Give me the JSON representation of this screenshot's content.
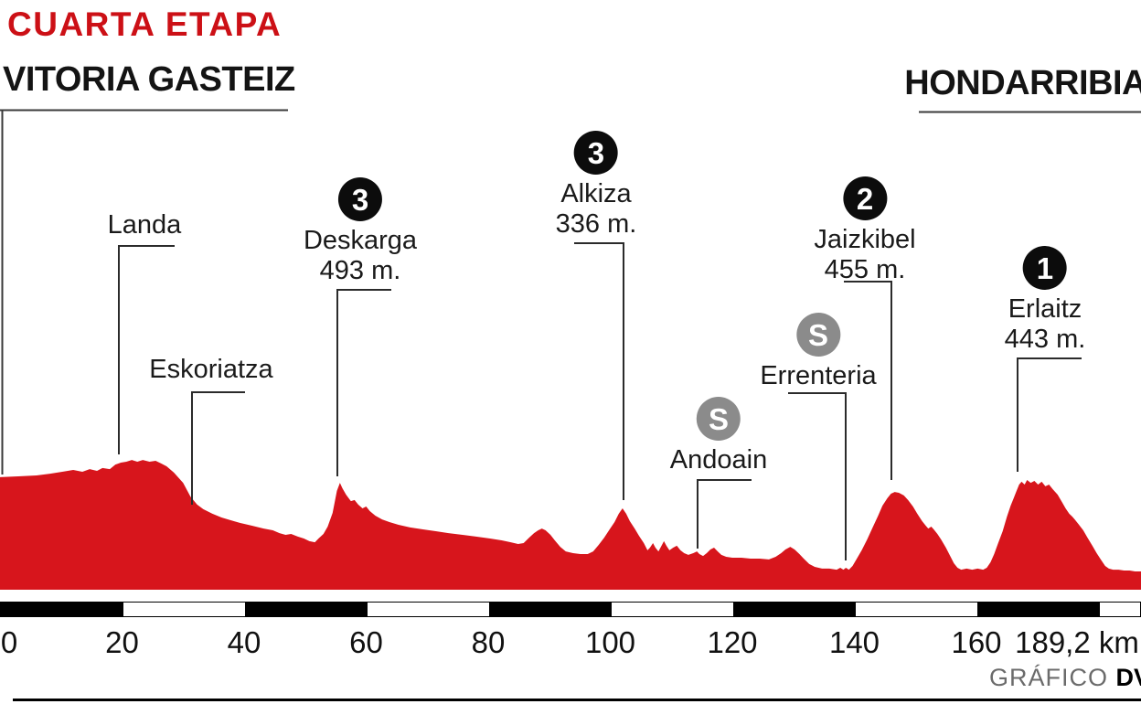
{
  "header": {
    "stage_title": "CUARTA ETAPA",
    "start": "VITORIA GASTEIZ",
    "finish": "HONDARRIBIA"
  },
  "credit": {
    "prefix": "GRÁFICO",
    "brand": "DV"
  },
  "colors": {
    "title_red": "#cc1016",
    "profile_red": "#d7151c",
    "badge_black": "#0c0c0c",
    "sprint_gray": "#8b8b8b",
    "leader_line": "#2b2b2b"
  },
  "chart_data": {
    "type": "area",
    "title": "CUARTA ETAPA",
    "start_label": "VITORIA GASTEIZ",
    "finish_label": "HONDARRIBIA",
    "unit": "km",
    "x_ticks": [
      0,
      20,
      40,
      60,
      80,
      100,
      120,
      140,
      160
    ],
    "total_distance_label": "189,2 km",
    "total_distance_km": 189.2,
    "xlim": [
      0,
      189.2
    ],
    "grid": false,
    "markers": [
      {
        "name": "Landa",
        "type": "town",
        "km": 19.5
      },
      {
        "name": "Eskoriatza",
        "type": "town",
        "km": 31.5
      },
      {
        "name": "Deskarga",
        "type": "climb",
        "km": 55.3,
        "badge": "3",
        "height_label": "493 m."
      },
      {
        "name": "Alkiza",
        "type": "climb",
        "km": 102.2,
        "badge": "3",
        "height_label": "336 m."
      },
      {
        "name": "Andoain",
        "type": "sprint",
        "km": 114.3,
        "badge": "S"
      },
      {
        "name": "Errenteria",
        "type": "sprint",
        "km": 138.6,
        "badge": "S"
      },
      {
        "name": "Jaizkibel",
        "type": "climb",
        "km": 146.1,
        "badge": "2",
        "height_label": "455 m."
      },
      {
        "name": "Erlaitz",
        "type": "climb",
        "km": 166.7,
        "badge": "1",
        "height_label": "443 m."
      }
    ],
    "profile": [
      [
        0,
        517
      ],
      [
        3,
        521
      ],
      [
        6,
        525
      ],
      [
        8.2,
        533
      ],
      [
        10.2,
        542
      ],
      [
        12,
        550
      ],
      [
        13.5,
        542
      ],
      [
        14.7,
        554
      ],
      [
        15.9,
        546
      ],
      [
        16.8,
        559
      ],
      [
        18,
        554
      ],
      [
        18.9,
        575
      ],
      [
        19.8,
        584
      ],
      [
        20.7,
        588
      ],
      [
        21.6,
        596
      ],
      [
        22.5,
        588
      ],
      [
        23.4,
        596
      ],
      [
        24.5,
        588
      ],
      [
        25.5,
        592
      ],
      [
        26.4,
        580
      ],
      [
        27.3,
        567
      ],
      [
        28.5,
        538
      ],
      [
        30,
        491
      ],
      [
        31.2,
        428
      ],
      [
        32.3,
        391
      ],
      [
        33.3,
        370
      ],
      [
        34.8,
        349
      ],
      [
        36.3,
        332
      ],
      [
        37.8,
        319
      ],
      [
        39.3,
        307
      ],
      [
        41.3,
        294
      ],
      [
        43.2,
        281
      ],
      [
        44.7,
        273
      ],
      [
        45.8,
        260
      ],
      [
        46.8,
        252
      ],
      [
        47.7,
        256
      ],
      [
        48.8,
        244
      ],
      [
        49.8,
        235
      ],
      [
        50.7,
        223
      ],
      [
        51.6,
        218
      ],
      [
        52.2,
        235
      ],
      [
        53,
        256
      ],
      [
        53.7,
        290
      ],
      [
        54.5,
        353
      ],
      [
        55.2,
        454
      ],
      [
        55.7,
        491
      ],
      [
        56.1,
        466
      ],
      [
        56.7,
        437
      ],
      [
        57.5,
        407
      ],
      [
        58.1,
        412
      ],
      [
        58.7,
        391
      ],
      [
        59.4,
        374
      ],
      [
        60,
        382
      ],
      [
        60.6,
        361
      ],
      [
        61.5,
        340
      ],
      [
        62.6,
        323
      ],
      [
        63.8,
        311
      ],
      [
        65.3,
        298
      ],
      [
        67.2,
        286
      ],
      [
        69.3,
        277
      ],
      [
        71.4,
        269
      ],
      [
        73.5,
        260
      ],
      [
        75.8,
        252
      ],
      [
        78,
        244
      ],
      [
        80.3,
        235
      ],
      [
        82.2,
        227
      ],
      [
        83.7,
        218
      ],
      [
        84.9,
        210
      ],
      [
        85.8,
        214
      ],
      [
        86.7,
        239
      ],
      [
        87.5,
        260
      ],
      [
        88.2,
        273
      ],
      [
        88.8,
        281
      ],
      [
        89.4,
        273
      ],
      [
        90.2,
        252
      ],
      [
        90.9,
        227
      ],
      [
        91.8,
        197
      ],
      [
        92.7,
        176
      ],
      [
        93.9,
        168
      ],
      [
        95.1,
        164
      ],
      [
        96.3,
        164
      ],
      [
        97.2,
        176
      ],
      [
        98.1,
        206
      ],
      [
        99,
        239
      ],
      [
        99.9,
        277
      ],
      [
        100.7,
        311
      ],
      [
        101.4,
        349
      ],
      [
        102,
        374
      ],
      [
        102.6,
        349
      ],
      [
        103.2,
        315
      ],
      [
        104,
        281
      ],
      [
        104.7,
        248
      ],
      [
        105.5,
        214
      ],
      [
        106.1,
        181
      ],
      [
        106.5,
        193
      ],
      [
        107,
        214
      ],
      [
        107.4,
        193
      ],
      [
        107.9,
        176
      ],
      [
        108.3,
        197
      ],
      [
        108.8,
        223
      ],
      [
        109.2,
        202
      ],
      [
        109.7,
        181
      ],
      [
        110.3,
        193
      ],
      [
        110.9,
        202
      ],
      [
        111.5,
        181
      ],
      [
        112.1,
        168
      ],
      [
        112.8,
        160
      ],
      [
        113.6,
        168
      ],
      [
        114.2,
        176
      ],
      [
        114.6,
        164
      ],
      [
        115.2,
        155
      ],
      [
        115.8,
        168
      ],
      [
        116.4,
        185
      ],
      [
        117,
        193
      ],
      [
        117.6,
        176
      ],
      [
        118.2,
        160
      ],
      [
        119,
        151
      ],
      [
        120,
        147
      ],
      [
        121.5,
        147
      ],
      [
        123,
        143
      ],
      [
        124.5,
        143
      ],
      [
        126,
        139
      ],
      [
        127.1,
        151
      ],
      [
        128,
        168
      ],
      [
        128.7,
        185
      ],
      [
        129.5,
        197
      ],
      [
        130.2,
        185
      ],
      [
        131,
        164
      ],
      [
        131.7,
        143
      ],
      [
        132.6,
        118
      ],
      [
        133.5,
        105
      ],
      [
        134.7,
        97
      ],
      [
        135.9,
        97
      ],
      [
        137.1,
        92
      ],
      [
        137.7,
        101
      ],
      [
        138.2,
        92
      ],
      [
        138.6,
        101
      ],
      [
        139.1,
        92
      ],
      [
        139.7,
        109
      ],
      [
        140.4,
        143
      ],
      [
        141.2,
        181
      ],
      [
        142.1,
        231
      ],
      [
        143,
        286
      ],
      [
        143.9,
        340
      ],
      [
        144.6,
        386
      ],
      [
        145.4,
        420
      ],
      [
        146,
        441
      ],
      [
        146.6,
        449
      ],
      [
        147.3,
        445
      ],
      [
        148.1,
        433
      ],
      [
        148.8,
        412
      ],
      [
        149.6,
        382
      ],
      [
        150.3,
        349
      ],
      [
        151.1,
        315
      ],
      [
        151.7,
        294
      ],
      [
        152.1,
        281
      ],
      [
        152.6,
        290
      ],
      [
        153,
        277
      ],
      [
        153.6,
        256
      ],
      [
        154.2,
        231
      ],
      [
        155,
        193
      ],
      [
        155.7,
        155
      ],
      [
        156.3,
        122
      ],
      [
        156.9,
        101
      ],
      [
        157.5,
        92
      ],
      [
        158.4,
        97
      ],
      [
        159.3,
        92
      ],
      [
        160.2,
        97
      ],
      [
        161.1,
        92
      ],
      [
        161.7,
        101
      ],
      [
        162.3,
        126
      ],
      [
        162.9,
        164
      ],
      [
        163.5,
        210
      ],
      [
        164.3,
        269
      ],
      [
        165,
        336
      ],
      [
        165.6,
        386
      ],
      [
        166.1,
        420
      ],
      [
        166.5,
        449
      ],
      [
        167,
        483
      ],
      [
        167.4,
        496
      ],
      [
        167.9,
        483
      ],
      [
        168.3,
        504
      ],
      [
        168.9,
        491
      ],
      [
        169.5,
        500
      ],
      [
        170.1,
        483
      ],
      [
        170.7,
        496
      ],
      [
        171.3,
        475
      ],
      [
        171.9,
        483
      ],
      [
        172.5,
        462
      ],
      [
        173.3,
        437
      ],
      [
        174,
        403
      ],
      [
        174.6,
        374
      ],
      [
        175.2,
        349
      ],
      [
        175.7,
        336
      ],
      [
        176.1,
        323
      ],
      [
        176.7,
        302
      ],
      [
        177.5,
        273
      ],
      [
        178.2,
        239
      ],
      [
        179,
        202
      ],
      [
        179.7,
        168
      ],
      [
        180.5,
        134
      ],
      [
        181.1,
        109
      ],
      [
        181.7,
        97
      ],
      [
        182.4,
        92
      ],
      [
        183.3,
        92
      ],
      [
        184.2,
        88
      ],
      [
        185.1,
        88
      ],
      [
        186,
        84
      ],
      [
        187.2,
        84
      ]
    ]
  }
}
